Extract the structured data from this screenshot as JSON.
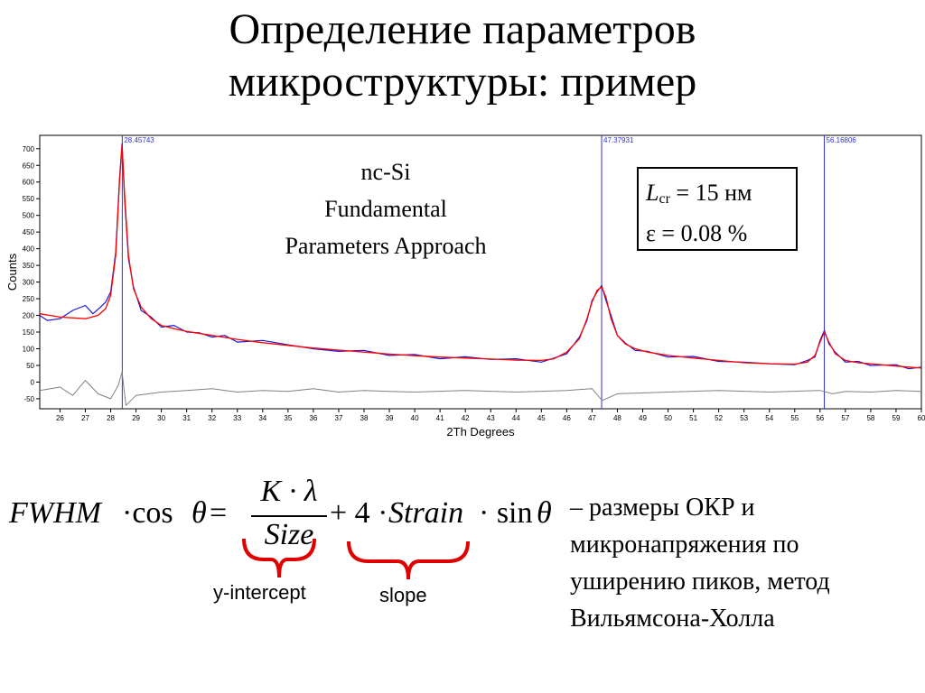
{
  "title": {
    "line1": "Определение параметров",
    "line2": "микроструктуры: пример"
  },
  "plot_label": {
    "line1": "nc-Si",
    "line2": "Fundamental",
    "line3": "Parameters Approach"
  },
  "params": {
    "L_symbol": "L",
    "L_sub": "cr",
    "L_value": " = 15 нм",
    "strain": "ε = 0.08 %"
  },
  "formula": {
    "lhs": "FWHM",
    "cos": "·cos",
    "theta": "θ",
    "eq": " = ",
    "numerator": "K · λ",
    "denominator": "Size",
    "plus": "+ 4 ·",
    "strain": "Strain",
    "sin": "· sin",
    "theta2": "θ"
  },
  "brace_labels": {
    "intercept": "y-intercept",
    "slope": "slope"
  },
  "description": "– размеры ОКР и микронапряжения по уширению пиков, метод Вильямсона-Холла",
  "colors": {
    "observed": "#1a1ad6",
    "fit": "#ff0000",
    "difference": "#808080",
    "peak_line": "#3030d0",
    "brace": "#e00000"
  },
  "chart_data": {
    "type": "line",
    "xlabel": "2Th Degrees",
    "ylabel": "Counts",
    "xlim": [
      25.2,
      60
    ],
    "ylim": [
      -80,
      740
    ],
    "xticks": [
      26,
      27,
      28,
      29,
      30,
      31,
      32,
      33,
      34,
      35,
      36,
      37,
      38,
      39,
      40,
      41,
      42,
      43,
      44,
      45,
      46,
      47,
      48,
      49,
      50,
      51,
      52,
      53,
      54,
      55,
      56,
      57,
      58,
      59,
      60
    ],
    "yticks": [
      -50,
      0,
      50,
      100,
      150,
      200,
      250,
      300,
      350,
      400,
      450,
      500,
      550,
      600,
      650,
      700
    ],
    "peak_markers": [
      {
        "x": 28.45743,
        "label": "28.45743"
      },
      {
        "x": 47.37931,
        "label": "47.37931"
      },
      {
        "x": 56.16806,
        "label": "56.16806"
      }
    ],
    "series": [
      {
        "name": "",
        "role": "fit",
        "x": [
          25.2,
          26.0,
          27.0,
          27.5,
          27.8,
          28.0,
          28.2,
          28.35,
          28.45,
          28.55,
          28.7,
          28.9,
          29.2,
          29.6,
          30.0,
          30.5,
          31.0,
          32.0,
          33.0,
          34.0,
          35.0,
          36.0,
          37.0,
          38.0,
          39.0,
          40.0,
          41.0,
          42.0,
          43.0,
          44.0,
          45.0,
          45.5,
          46.0,
          46.5,
          46.8,
          47.0,
          47.2,
          47.38,
          47.55,
          47.75,
          48.0,
          48.3,
          48.7,
          49.2,
          50.0,
          51.0,
          52.0,
          53.0,
          54.0,
          55.0,
          55.5,
          55.8,
          56.0,
          56.17,
          56.35,
          56.6,
          57.0,
          57.5,
          58.0,
          59.0,
          60.0
        ],
        "y": [
          205,
          195,
          190,
          200,
          220,
          260,
          380,
          600,
          710,
          560,
          380,
          280,
          225,
          190,
          170,
          160,
          152,
          140,
          128,
          118,
          110,
          102,
          96,
          90,
          84,
          79,
          75,
          72,
          69,
          66,
          65,
          70,
          90,
          130,
          190,
          240,
          275,
          285,
          255,
          190,
          140,
          115,
          100,
          90,
          80,
          72,
          65,
          58,
          55,
          54,
          60,
          80,
          120,
          150,
          120,
          85,
          65,
          58,
          55,
          48,
          42
        ]
      },
      {
        "name": "",
        "role": "observed",
        "x": [
          25.2,
          25.5,
          26.0,
          26.5,
          27.0,
          27.3,
          27.6,
          27.8,
          28.0,
          28.2,
          28.35,
          28.45,
          28.55,
          28.7,
          28.9,
          29.2,
          29.6,
          30.0,
          30.5,
          31.0,
          31.5,
          32.0,
          32.5,
          33.0,
          34.0,
          35.0,
          36.0,
          37.0,
          38.0,
          39.0,
          40.0,
          41.0,
          42.0,
          43.0,
          44.0,
          45.0,
          45.5,
          46.0,
          46.5,
          46.8,
          47.0,
          47.2,
          47.38,
          47.55,
          47.75,
          48.0,
          48.3,
          48.7,
          49.2,
          50.0,
          51.0,
          52.0,
          53.0,
          54.0,
          55.0,
          55.5,
          55.8,
          56.0,
          56.17,
          56.35,
          56.6,
          57.0,
          57.5,
          58.0,
          59.0,
          59.5,
          60.0
        ],
        "y": [
          200,
          185,
          190,
          215,
          230,
          205,
          225,
          240,
          270,
          390,
          610,
          715,
          545,
          370,
          285,
          215,
          195,
          165,
          170,
          150,
          148,
          135,
          140,
          120,
          125,
          112,
          100,
          92,
          95,
          80,
          83,
          70,
          76,
          68,
          70,
          60,
          72,
          85,
          135,
          185,
          245,
          270,
          290,
          245,
          200,
          140,
          118,
          95,
          92,
          75,
          77,
          62,
          60,
          55,
          52,
          65,
          75,
          125,
          155,
          115,
          90,
          60,
          62,
          50,
          52,
          40,
          45
        ]
      },
      {
        "name": "",
        "role": "difference",
        "x": [
          25.2,
          26.0,
          26.5,
          27.0,
          27.5,
          28.0,
          28.3,
          28.45,
          28.6,
          29.0,
          30.0,
          31.0,
          32.0,
          33.0,
          34.0,
          35.0,
          36.0,
          37.0,
          38.0,
          39.0,
          40.0,
          42.0,
          44.0,
          46.0,
          47.0,
          47.4,
          48.0,
          50.0,
          52.0,
          54.0,
          56.0,
          56.5,
          57.0,
          58.0,
          59.0,
          60.0
        ],
        "y": [
          -25,
          -15,
          -40,
          5,
          -35,
          -50,
          -10,
          30,
          -70,
          -40,
          -30,
          -25,
          -20,
          -30,
          -25,
          -28,
          -20,
          -30,
          -25,
          -28,
          -30,
          -25,
          -30,
          -25,
          -20,
          -55,
          -35,
          -30,
          -25,
          -30,
          -25,
          -35,
          -28,
          -30,
          -25,
          -28
        ]
      }
    ]
  }
}
